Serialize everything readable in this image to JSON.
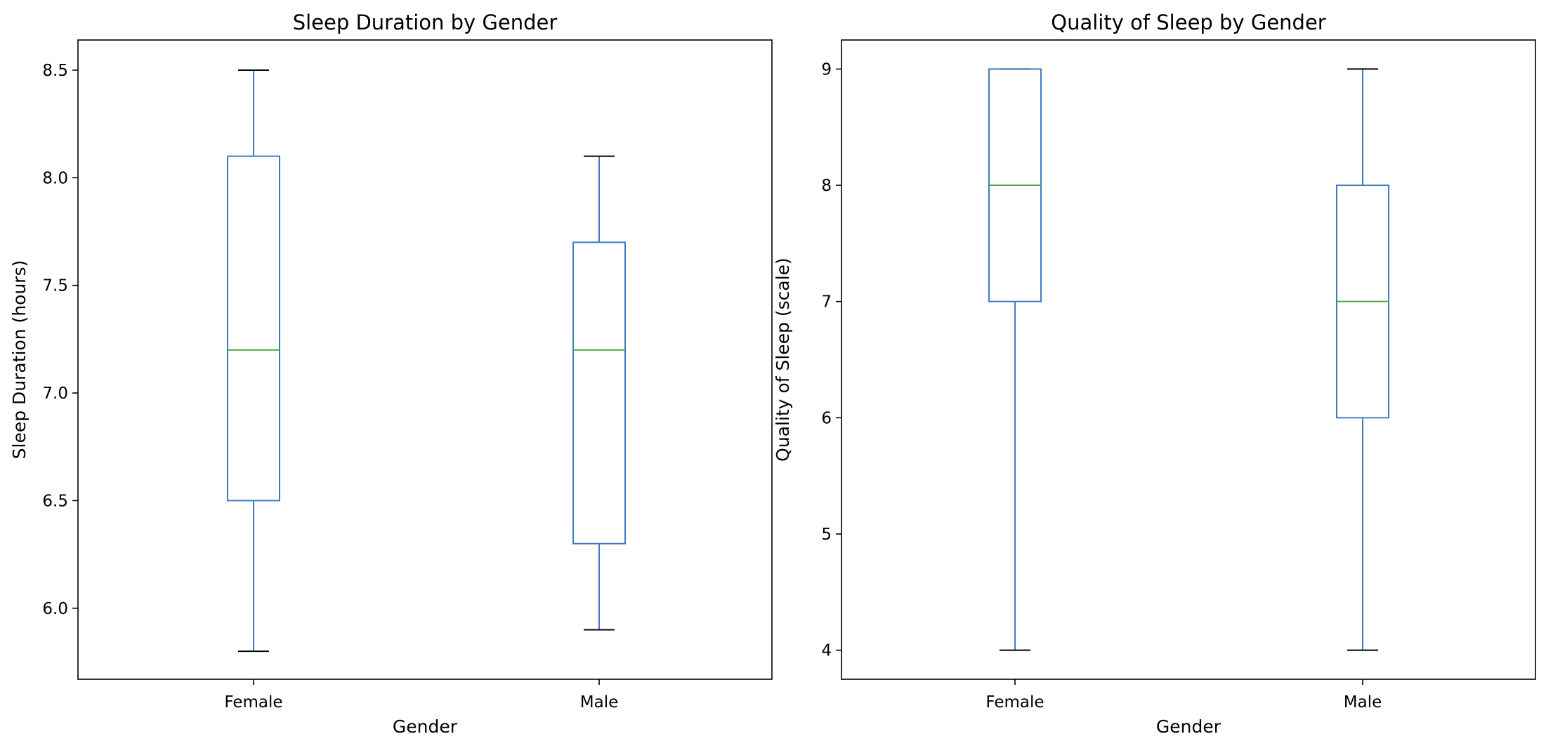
{
  "chart_data": [
    {
      "type": "boxplot",
      "title": "Sleep Duration by Gender",
      "xlabel": "Gender",
      "ylabel": "Sleep Duration (hours)",
      "categories": [
        "Female",
        "Male"
      ],
      "boxes": [
        {
          "category": "Female",
          "whisker_low": 5.8,
          "q1": 6.5,
          "median": 7.2,
          "q3": 8.1,
          "whisker_high": 8.5
        },
        {
          "category": "Male",
          "whisker_low": 5.9,
          "q1": 6.3,
          "median": 7.2,
          "q3": 7.7,
          "whisker_high": 8.1
        }
      ],
      "ylim": [
        5.67,
        8.64
      ],
      "yticks": [
        6.0,
        6.5,
        7.0,
        7.5,
        8.0,
        8.5
      ],
      "ytick_labels": [
        "6.0",
        "6.5",
        "7.0",
        "7.5",
        "8.0",
        "8.5"
      ],
      "grid": false
    },
    {
      "type": "boxplot",
      "title": "Quality of Sleep by Gender",
      "xlabel": "Gender",
      "ylabel": "Quality of Sleep (scale)",
      "categories": [
        "Female",
        "Male"
      ],
      "boxes": [
        {
          "category": "Female",
          "whisker_low": 4,
          "q1": 7,
          "median": 8,
          "q3": 9,
          "whisker_high": 9
        },
        {
          "category": "Male",
          "whisker_low": 4,
          "q1": 6,
          "median": 7,
          "q3": 8,
          "whisker_high": 9
        }
      ],
      "ylim": [
        3.75,
        9.25
      ],
      "yticks": [
        4,
        5,
        6,
        7,
        8,
        9
      ],
      "ytick_labels": [
        "4",
        "5",
        "6",
        "7",
        "8",
        "9"
      ],
      "grid": false
    }
  ],
  "colors": {
    "box": "#3d7cc2",
    "median": "#4fa83d",
    "cap": "#000000",
    "axes": "#000000"
  }
}
